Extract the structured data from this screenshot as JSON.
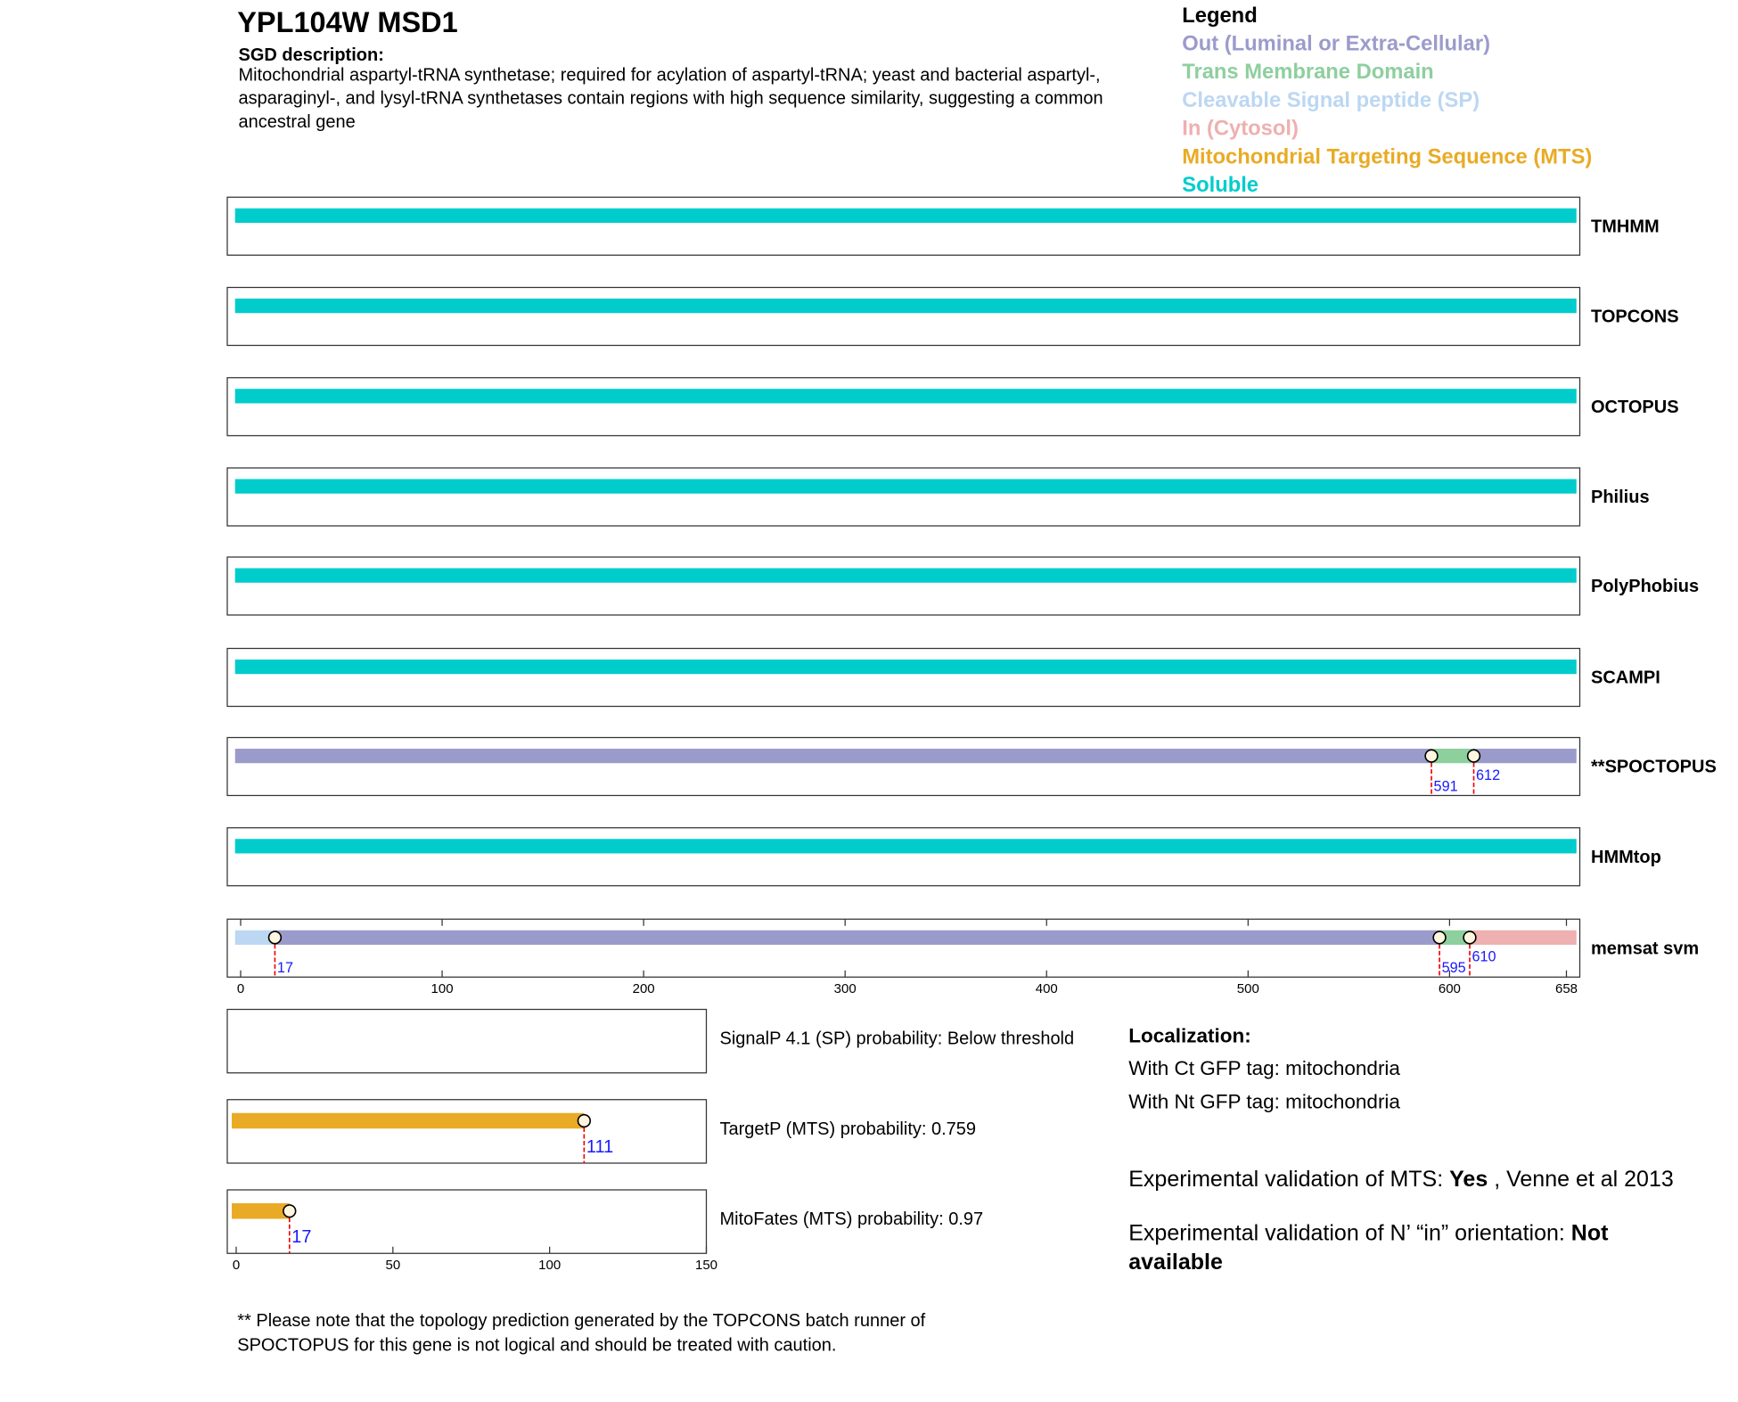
{
  "header": {
    "title": "YPL104W  MSD1",
    "description_label": "SGD description:",
    "description": [
      "Mitochondrial aspartyl-tRNA synthetase; required for acylation of aspartyl-tRNA; yeast and bacterial aspartyl-,",
      "asparaginyl-, and lysyl-tRNA synthetases contain regions with high sequence similarity, suggesting a common",
      "ancestral gene"
    ]
  },
  "legend": {
    "title": "Legend",
    "items": [
      {
        "label": "Out (Luminal or Extra-Cellular)",
        "color": "#9b9bcb"
      },
      {
        "label": "Trans Membrane Domain",
        "color": "#8ecf9e"
      },
      {
        "label": "Cleavable Signal peptide (SP)",
        "color": "#bcd7f2"
      },
      {
        "label": "In (Cytosol)",
        "color": "#eeb0b0"
      },
      {
        "label": "Mitochondrial Targeting Sequence (MTS)",
        "color": "#e9ab25"
      },
      {
        "label": "Soluble",
        "color": "#00cccc"
      }
    ]
  },
  "chart_data": [
    {
      "type": "topology",
      "name": "TMHMM",
      "xlim": [
        0,
        658
      ],
      "segments": [
        {
          "start": 0,
          "end": 658,
          "color": "#00cccc"
        }
      ],
      "markers": []
    },
    {
      "type": "topology",
      "name": "TOPCONS",
      "xlim": [
        0,
        658
      ],
      "segments": [
        {
          "start": 0,
          "end": 658,
          "color": "#00cccc"
        }
      ],
      "markers": []
    },
    {
      "type": "topology",
      "name": "OCTOPUS",
      "xlim": [
        0,
        658
      ],
      "segments": [
        {
          "start": 0,
          "end": 658,
          "color": "#00cccc"
        }
      ],
      "markers": []
    },
    {
      "type": "topology",
      "name": "Philius",
      "xlim": [
        0,
        658
      ],
      "segments": [
        {
          "start": 0,
          "end": 658,
          "color": "#00cccc"
        }
      ],
      "markers": []
    },
    {
      "type": "topology",
      "name": "PolyPhobius",
      "xlim": [
        0,
        658
      ],
      "segments": [
        {
          "start": 0,
          "end": 658,
          "color": "#00cccc"
        }
      ],
      "markers": []
    },
    {
      "type": "topology",
      "name": "SCAMPI",
      "xlim": [
        0,
        658
      ],
      "segments": [
        {
          "start": 0,
          "end": 658,
          "color": "#00cccc"
        }
      ],
      "markers": []
    },
    {
      "type": "topology",
      "name": "**SPOCTOPUS",
      "xlim": [
        0,
        658
      ],
      "segments": [
        {
          "start": 0,
          "end": 591,
          "color": "#9b9bcb"
        },
        {
          "start": 591,
          "end": 612,
          "color": "#8ecf9e"
        },
        {
          "start": 612,
          "end": 658,
          "color": "#9b9bcb"
        }
      ],
      "markers": [
        591,
        612
      ]
    },
    {
      "type": "topology",
      "name": "HMMtop",
      "xlim": [
        0,
        658
      ],
      "segments": [
        {
          "start": 0,
          "end": 658,
          "color": "#00cccc"
        }
      ],
      "markers": []
    },
    {
      "type": "topology",
      "name": "memsat svm",
      "xlim": [
        0,
        658
      ],
      "segments": [
        {
          "start": 0,
          "end": 17,
          "color": "#bcd7f2"
        },
        {
          "start": 17,
          "end": 595,
          "color": "#9b9bcb"
        },
        {
          "start": 595,
          "end": 610,
          "color": "#8ecf9e"
        },
        {
          "start": 610,
          "end": 658,
          "color": "#eeb0b0"
        }
      ],
      "markers": [
        17,
        595,
        610
      ],
      "xticks": [
        0,
        100,
        200,
        300,
        400,
        500,
        600,
        658
      ]
    },
    {
      "type": "probability",
      "name": "SignalP 4.1 (SP) probability: Below threshold",
      "xlim": [
        0,
        150
      ],
      "segments": [],
      "markers": []
    },
    {
      "type": "probability",
      "name": "TargetP (MTS) probability: 0.759",
      "xlim": [
        0,
        150
      ],
      "segments": [
        {
          "start": 0,
          "end": 111,
          "color": "#e9ab25"
        }
      ],
      "markers": [
        111
      ]
    },
    {
      "type": "probability",
      "name": "MitoFates (MTS) probability: 0.97",
      "xlim": [
        0,
        150
      ],
      "segments": [
        {
          "start": 0,
          "end": 17,
          "color": "#e9ab25"
        }
      ],
      "markers": [
        17
      ],
      "xticks": [
        0,
        50,
        100,
        150
      ]
    }
  ],
  "localization": {
    "title": "Localization:",
    "lines": [
      "With Ct GFP tag: mitochondria",
      "With Nt GFP tag: mitochondria"
    ]
  },
  "validation": [
    {
      "label": "Experimental validation of MTS:",
      "value": "Yes",
      "note": ", Venne et al 2013"
    },
    {
      "label": "Experimental validation of N’ “in” orientation:",
      "value": "Not available"
    }
  ],
  "footnote": [
    "** Please note that the topology prediction generated by the TOPCONS batch runner of",
    "SPOCTOPUS for this gene is not logical and should be treated with caution."
  ]
}
